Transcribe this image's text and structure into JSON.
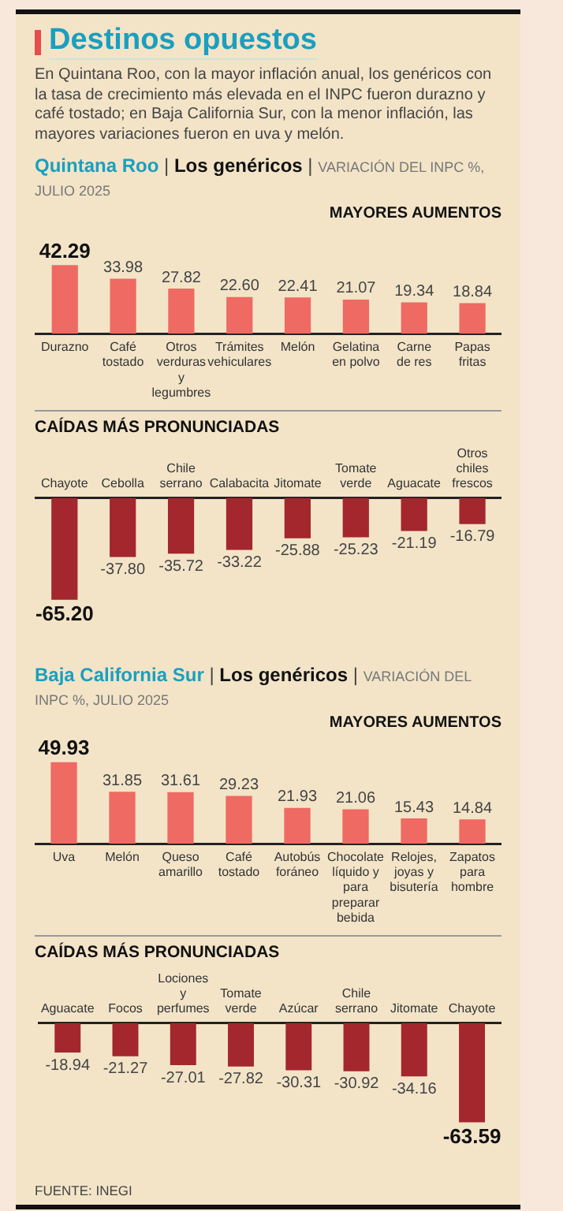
{
  "chart_data": [
    {
      "type": "bar",
      "title": "Destinos opuestos",
      "subtitle": "En Quintana Roo, con la mayor inflación anual, los genéricos con la tasa de crecimiento más elevada en el INPC fueron durazno y café tostado; en Baja California Sur, con la menor inflación, las mayores variaciones fueron en uva y melón.",
      "annotations": [
        "Quintana Roo | Los genéricos | VARIACIÓN DEL INPC %, JULIO 2025",
        "MAYORES AUMENTOS"
      ],
      "categories": [
        "Durazno",
        "Café tostado",
        "Otros verduras y legumbres",
        "Trámites vehiculares",
        "Melón",
        "Gelatina en polvo",
        "Carne de res",
        "Papas fritas"
      ],
      "values": [
        42.29,
        33.98,
        27.82,
        22.6,
        22.41,
        21.07,
        19.34,
        18.84
      ],
      "value_labels": [
        "42.29",
        "33.98",
        "27.82",
        "22.60",
        "22.41",
        "21.07",
        "19.34",
        "18.84"
      ],
      "color": "#ee6a62",
      "legend": false,
      "grid": false
    },
    {
      "type": "bar",
      "title": "CAÍDAS MÁS PRONUNCIADAS",
      "categories": [
        "Chayote",
        "Cebolla",
        "Chile serrano",
        "Calabacita",
        "Jitomate",
        "Tomate verde",
        "Aguacate",
        "Otros chiles frescos"
      ],
      "values": [
        -65.2,
        -37.8,
        -35.72,
        -33.22,
        -25.88,
        -25.23,
        -21.19,
        -16.79
      ],
      "value_labels": [
        "-65.20",
        "-37.80",
        "-35.72",
        "-33.22",
        "-25.88",
        "-25.23",
        "-21.19",
        "-16.79"
      ],
      "color": "#a3272c",
      "legend": false,
      "grid": false
    },
    {
      "type": "bar",
      "annotations": [
        "Baja California Sur | Los genéricos | VARIACIÓN DEL INPC %, JULIO 2025",
        "MAYORES AUMENTOS"
      ],
      "categories": [
        "Uva",
        "Melón",
        "Queso amarillo",
        "Café tostado",
        "Autobús foráneo",
        "Chocolate líquido y para preparar bebida",
        "Relojes, joyas y bisutería",
        "Zapatos para hombre"
      ],
      "values": [
        49.93,
        31.85,
        31.61,
        29.23,
        21.93,
        21.06,
        15.43,
        14.84
      ],
      "value_labels": [
        "49.93",
        "31.85",
        "31.61",
        "29.23",
        "21.93",
        "21.06",
        "15.43",
        "14.84"
      ],
      "color": "#ee6a62",
      "legend": false,
      "grid": false
    },
    {
      "type": "bar",
      "title": "CAÍDAS MÁS PRONUNCIADAS",
      "annotations": [
        "FUENTE: INEGI"
      ],
      "categories": [
        "Aguacate",
        "Focos",
        "Lociones y perfumes",
        "Tomate verde",
        "Azúcar",
        "Chile serrano",
        "Jitomate",
        "Chayote"
      ],
      "values": [
        -18.94,
        -21.27,
        -27.01,
        -27.82,
        -30.31,
        -30.92,
        -34.16,
        -63.59
      ],
      "value_labels": [
        "-18.94",
        "-21.27",
        "-27.01",
        "-27.82",
        "-30.31",
        "-30.92",
        "-34.16",
        "-63.59"
      ],
      "color": "#a3272c",
      "legend": false,
      "grid": false
    }
  ]
}
